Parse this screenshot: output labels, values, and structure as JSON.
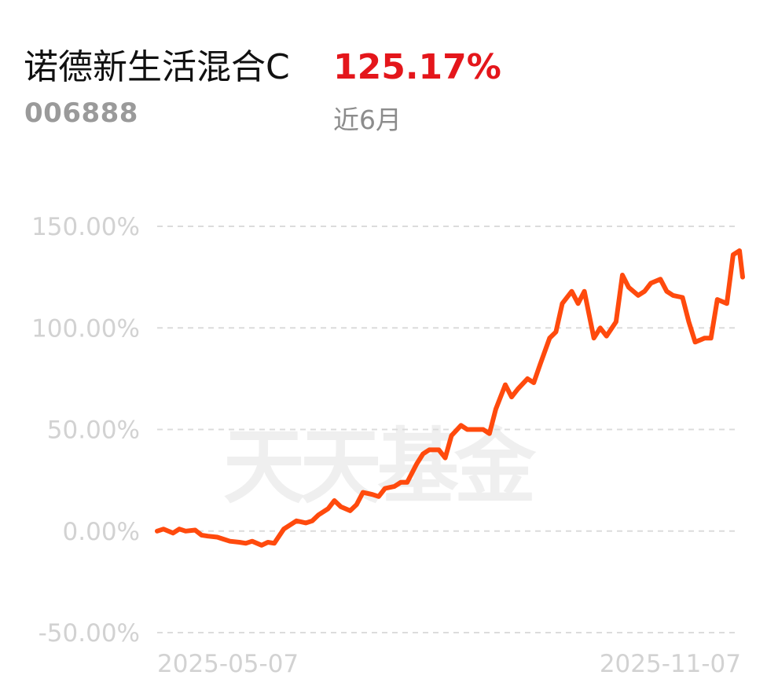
{
  "fund": {
    "name": "诺德新生活混合C",
    "code": "006888",
    "return_text": "125.17%",
    "period": "近6月"
  },
  "watermark": "天天基金",
  "colors": {
    "line": "#ff4a0d",
    "return_positive": "#e4161b",
    "grid": "#dcdcdc",
    "tick_text": "#d2d2d2"
  },
  "chart_data": {
    "type": "line",
    "title": "",
    "xlabel": "",
    "ylabel": "",
    "y_tick_labels": [
      "150.00%",
      "100.00%",
      "50.00%",
      "0.00%",
      "-50.00%"
    ],
    "y_ticks": [
      150,
      100,
      50,
      0,
      -50
    ],
    "ylim": [
      -50,
      150
    ],
    "x_tick_labels": [
      "2025-05-07",
      "2025-11-07"
    ],
    "xlim": [
      "2025-05-07",
      "2025-11-07"
    ],
    "grid": true,
    "grid_style": "dashed-horizontal",
    "series": [
      {
        "unit": "%",
        "x": [
          "2025-05-07",
          "2025-05-09",
          "2025-05-12",
          "2025-05-14",
          "2025-05-16",
          "2025-05-19",
          "2025-05-21",
          "2025-05-23",
          "2025-05-26",
          "2025-05-28",
          "2025-05-30",
          "2025-06-02",
          "2025-06-04",
          "2025-06-06",
          "2025-06-09",
          "2025-06-11",
          "2025-06-13",
          "2025-06-16",
          "2025-06-18",
          "2025-06-20",
          "2025-06-23",
          "2025-06-25",
          "2025-06-27",
          "2025-06-30",
          "2025-07-02",
          "2025-07-04",
          "2025-07-07",
          "2025-07-09",
          "2025-07-11",
          "2025-07-14",
          "2025-07-16",
          "2025-07-18",
          "2025-07-21",
          "2025-07-23",
          "2025-07-25",
          "2025-07-28",
          "2025-07-30",
          "2025-08-01",
          "2025-08-04",
          "2025-08-06",
          "2025-08-08",
          "2025-08-11",
          "2025-08-13",
          "2025-08-15",
          "2025-08-18",
          "2025-08-20",
          "2025-08-22",
          "2025-08-25",
          "2025-08-27",
          "2025-08-29",
          "2025-09-01",
          "2025-09-03",
          "2025-09-05",
          "2025-09-08",
          "2025-09-10",
          "2025-09-12",
          "2025-09-15",
          "2025-09-17",
          "2025-09-19",
          "2025-09-22",
          "2025-09-24",
          "2025-09-26",
          "2025-09-29",
          "2025-10-01",
          "2025-10-03",
          "2025-10-06",
          "2025-10-08",
          "2025-10-10",
          "2025-10-13",
          "2025-10-15",
          "2025-10-17",
          "2025-10-20",
          "2025-10-22",
          "2025-10-24",
          "2025-10-27",
          "2025-10-29",
          "2025-10-31",
          "2025-11-03",
          "2025-11-05",
          "2025-11-07",
          "2025-11-08"
        ],
        "y": [
          0,
          1,
          -1,
          1,
          0,
          0.5,
          -2,
          -2.5,
          -3,
          -4,
          -5,
          -5.5,
          -6,
          -5,
          -7,
          -5.5,
          -6,
          1,
          3,
          5,
          4,
          5,
          8,
          11,
          15,
          12,
          10,
          13,
          19,
          18,
          17,
          21,
          22,
          24,
          24,
          33,
          38,
          40,
          40,
          36,
          47,
          52,
          50,
          50,
          50,
          48,
          60,
          72,
          66,
          70,
          75,
          73,
          82,
          95,
          98,
          112,
          118,
          112,
          118,
          95,
          100,
          96,
          103,
          126,
          120,
          116,
          118,
          122,
          124,
          118,
          116,
          115,
          103,
          93,
          95,
          95,
          114,
          112,
          136,
          138,
          125
        ]
      }
    ]
  }
}
